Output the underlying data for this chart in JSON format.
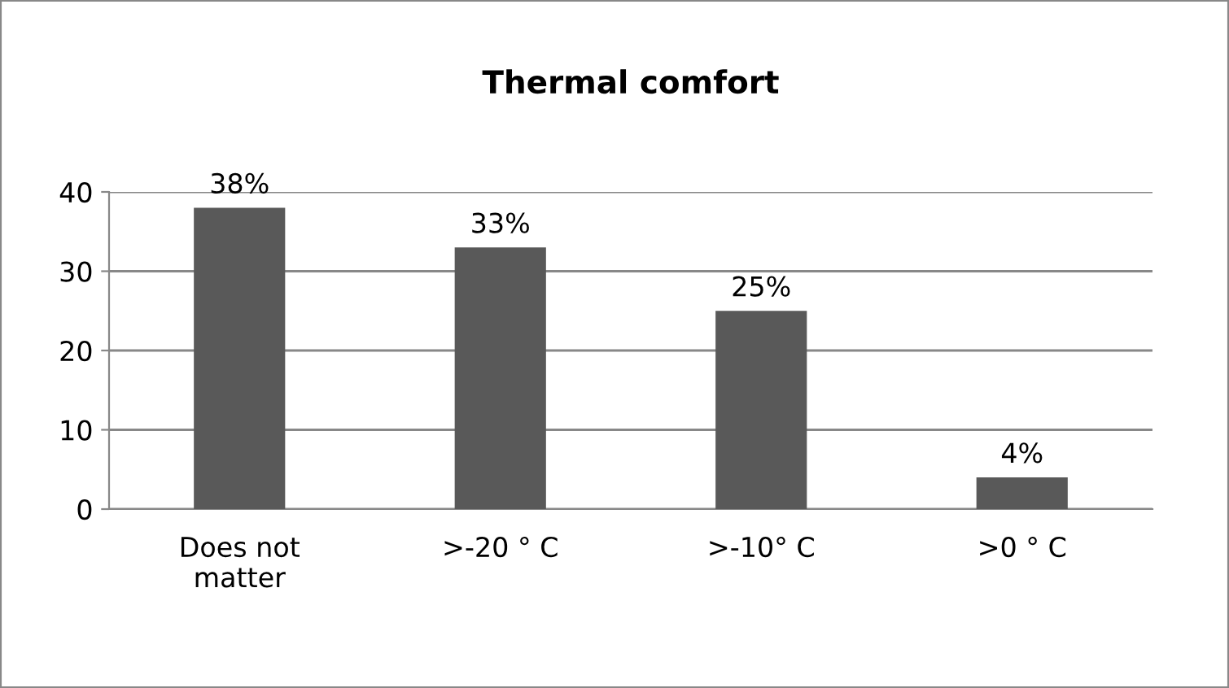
{
  "chart_data": {
    "type": "bar",
    "title": "Thermal comfort",
    "categories": [
      "Does not\nmatter",
      ">-20 ° C",
      ">-10° C",
      ">0 ° C"
    ],
    "values": [
      38,
      33,
      25,
      4
    ],
    "value_labels": [
      "38%",
      "33%",
      "25%",
      "4%"
    ],
    "color": "#595959",
    "ylim": [
      0,
      40
    ],
    "yticks": [
      0,
      10,
      20,
      30,
      40
    ],
    "grid": "y",
    "legend": false
  }
}
